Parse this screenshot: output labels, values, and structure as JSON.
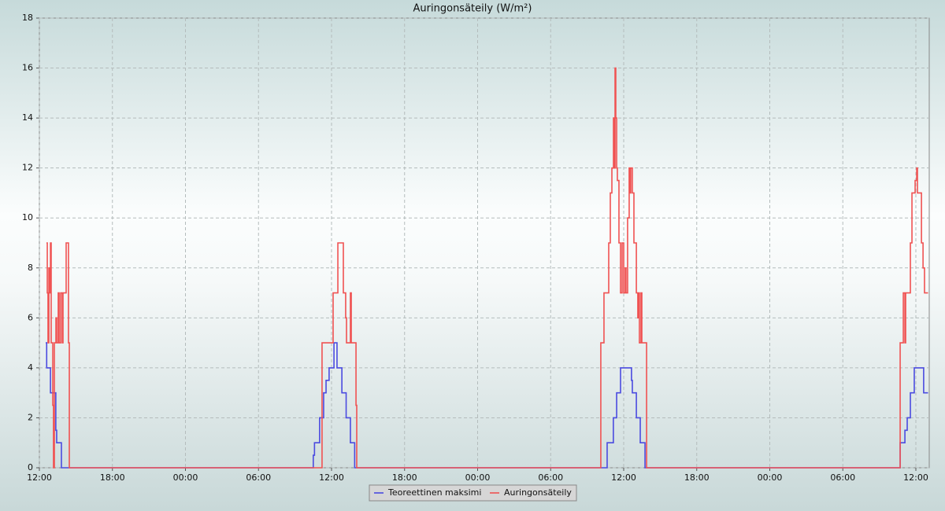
{
  "chart_data": {
    "type": "step-line",
    "title": "Auringonsäteily (W/m²)",
    "xlim": [
      0,
      73.1
    ],
    "ylim": [
      0,
      18
    ],
    "xticks": [
      {
        "value": 0,
        "label": "12:00"
      },
      {
        "value": 6,
        "label": "18:00"
      },
      {
        "value": 12,
        "label": "00:00"
      },
      {
        "value": 18,
        "label": "06:00"
      },
      {
        "value": 24,
        "label": "12:00"
      },
      {
        "value": 30,
        "label": "18:00"
      },
      {
        "value": 36,
        "label": "00:00"
      },
      {
        "value": 42,
        "label": "06:00"
      },
      {
        "value": 48,
        "label": "12:00"
      },
      {
        "value": 54,
        "label": "18:00"
      },
      {
        "value": 60,
        "label": "00:00"
      },
      {
        "value": 66,
        "label": "06:00"
      },
      {
        "value": 72,
        "label": "12:00"
      }
    ],
    "yticks": [
      0,
      2,
      4,
      6,
      8,
      10,
      12,
      14,
      16,
      18
    ],
    "grid": true,
    "legend": "bottom",
    "series": [
      {
        "name": "Teoreettinen maksimi",
        "color": "#4b4be0",
        "x": [
          0.52,
          0.6,
          0.91,
          1.35,
          1.42,
          1.81,
          22.5,
          22.6,
          23.02,
          23.35,
          23.55,
          23.8,
          24.2,
          24.45,
          24.85,
          25.2,
          25.55,
          25.9,
          46.64,
          47.15,
          47.42,
          47.74,
          48.64,
          48.71,
          49.04,
          49.36,
          49.75,
          70.71,
          71.1,
          71.29,
          71.55,
          71.87,
          72.64,
          73.0
        ],
        "values": [
          5,
          4,
          3,
          1.5,
          1,
          0,
          0.5,
          1,
          2,
          3,
          3.5,
          4,
          5,
          4,
          3,
          2,
          1,
          0,
          1,
          2,
          3,
          4,
          3.5,
          3,
          2,
          1,
          0,
          1,
          1.5,
          2,
          3,
          4,
          3,
          3
        ]
      },
      {
        "name": "Auringonsäteily",
        "color": "#f05252",
        "x": [
          0.58,
          0.65,
          0.71,
          0.78,
          0.84,
          0.91,
          0.97,
          1.04,
          1.1,
          1.16,
          1.23,
          1.36,
          1.42,
          1.55,
          1.62,
          1.75,
          1.88,
          1.94,
          2.13,
          2.2,
          2.33,
          2.39,
          2.46,
          23.22,
          24.13,
          24.52,
          24.97,
          25.16,
          25.23,
          25.55,
          25.62,
          26.01,
          26.07,
          46.12,
          46.38,
          46.77,
          46.9,
          47.03,
          47.16,
          47.22,
          47.29,
          47.35,
          47.42,
          47.48,
          47.61,
          47.74,
          47.87,
          48.0,
          48.13,
          48.19,
          48.32,
          48.45,
          48.52,
          48.58,
          48.71,
          48.84,
          49.04,
          49.16,
          49.23,
          49.29,
          49.42,
          49.49,
          49.88,
          70.71,
          70.97,
          71.1,
          71.16,
          71.55,
          71.68,
          71.94,
          72.07,
          72.13,
          72.46,
          72.59,
          72.71,
          73.0
        ],
        "values": [
          9,
          7,
          5,
          8,
          7,
          9,
          5,
          5,
          2.5,
          0,
          5,
          6,
          5,
          7,
          5,
          7,
          5,
          7,
          7,
          9,
          9,
          5,
          0,
          5,
          7,
          9,
          7,
          6,
          5,
          7,
          5,
          2.5,
          0,
          5,
          7,
          9,
          11,
          12,
          14,
          12,
          16,
          14,
          12,
          11.5,
          9,
          7,
          9,
          7,
          8,
          7,
          10,
          12,
          11,
          12,
          11,
          9,
          7,
          6,
          7,
          5,
          7,
          5,
          0,
          5,
          7,
          5,
          7,
          9,
          11,
          11.5,
          12,
          11,
          9,
          8,
          7,
          7
        ]
      }
    ]
  }
}
